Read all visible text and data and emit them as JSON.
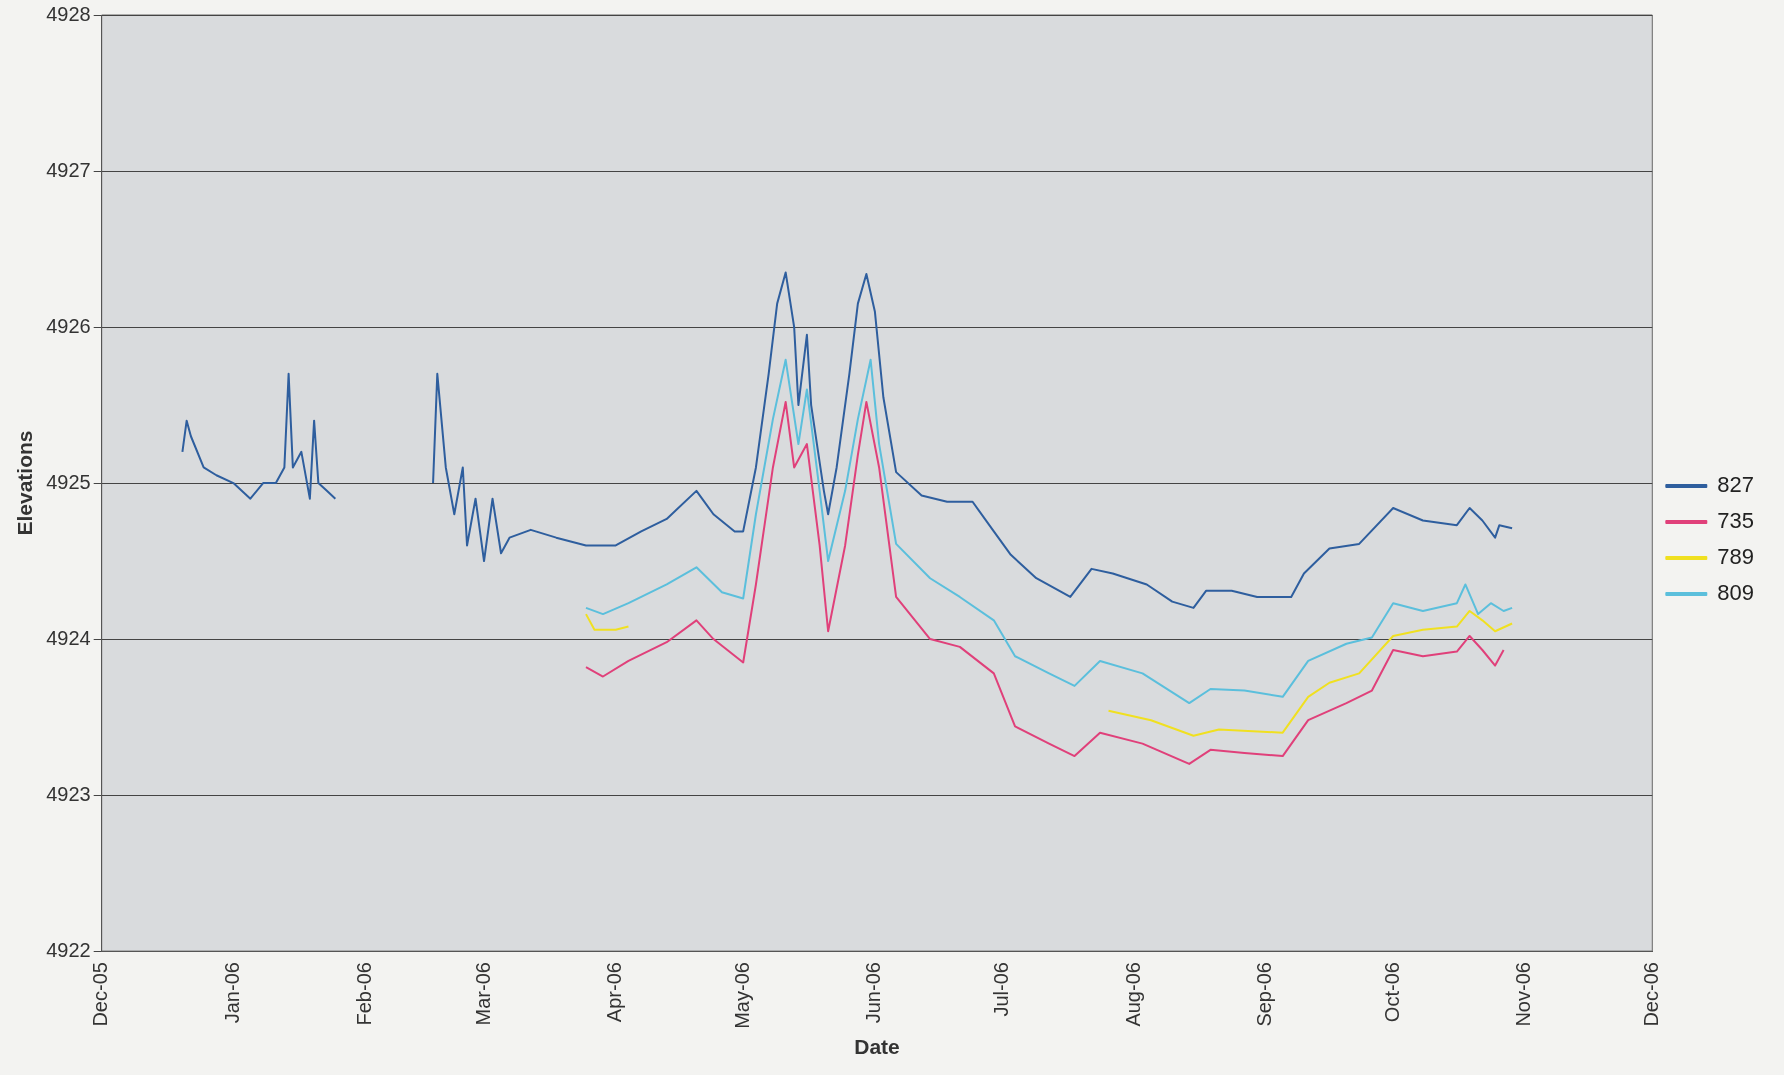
{
  "chart_data": {
    "type": "line",
    "xlabel": "Date",
    "ylabel": "Elevations",
    "ylim": [
      4922,
      4928
    ],
    "yticks": [
      4922,
      4923,
      4924,
      4925,
      4926,
      4927,
      4928
    ],
    "xlim": [
      "2005-12-01",
      "2006-12-01"
    ],
    "xticks": [
      {
        "value": "2005-12-01",
        "label": "Dec-05"
      },
      {
        "value": "2006-01-01",
        "label": "Jan-06"
      },
      {
        "value": "2006-02-01",
        "label": "Feb-06"
      },
      {
        "value": "2006-03-01",
        "label": "Mar-06"
      },
      {
        "value": "2006-04-01",
        "label": "Apr-06"
      },
      {
        "value": "2006-05-01",
        "label": "May-06"
      },
      {
        "value": "2006-06-01",
        "label": "Jun-06"
      },
      {
        "value": "2006-07-01",
        "label": "Jul-06"
      },
      {
        "value": "2006-08-01",
        "label": "Aug-06"
      },
      {
        "value": "2006-09-01",
        "label": "Sep-06"
      },
      {
        "value": "2006-10-01",
        "label": "Oct-06"
      },
      {
        "value": "2006-11-01",
        "label": "Nov-06"
      },
      {
        "value": "2006-12-01",
        "label": "Dec-06"
      }
    ],
    "grid": "y",
    "legend": "right",
    "marker": "none",
    "line_style": "solid",
    "series": [
      {
        "name": "827",
        "color": "#2e5e9e",
        "x": [
          "2005-12-20",
          "2005-12-21",
          "2005-12-22",
          "2005-12-25",
          "2005-12-28",
          "2006-01-01",
          "2006-01-05",
          "2006-01-08",
          "2006-01-11",
          "2006-01-13",
          "2006-01-14",
          "2006-01-15",
          "2006-01-17",
          "2006-01-19",
          "2006-01-20",
          "2006-01-21",
          "2006-01-23",
          "2006-01-25",
          "2006-02-05",
          "2006-02-17",
          "2006-02-18",
          "2006-02-20",
          "2006-02-22",
          "2006-02-24",
          "2006-02-25",
          "2006-02-27",
          "2006-03-01",
          "2006-03-03",
          "2006-03-05",
          "2006-03-07",
          "2006-03-12",
          "2006-03-18",
          "2006-03-25",
          "2006-04-01",
          "2006-04-07",
          "2006-04-13",
          "2006-04-20",
          "2006-04-24",
          "2006-04-29",
          "2006-05-01",
          "2006-05-04",
          "2006-05-07",
          "2006-05-09",
          "2006-05-11",
          "2006-05-13",
          "2006-05-14",
          "2006-05-16",
          "2006-05-17",
          "2006-05-20",
          "2006-05-21",
          "2006-05-23",
          "2006-05-26",
          "2006-05-28",
          "2006-05-30",
          "2006-06-01",
          "2006-06-03",
          "2006-06-06",
          "2006-06-12",
          "2006-06-18",
          "2006-06-24",
          "2006-06-29",
          "2006-07-03",
          "2006-07-09",
          "2006-07-17",
          "2006-07-22",
          "2006-07-27",
          "2006-08-04",
          "2006-08-10",
          "2006-08-15",
          "2006-08-18",
          "2006-08-24",
          "2006-08-30",
          "2006-09-07",
          "2006-09-10",
          "2006-09-16",
          "2006-09-23",
          "2006-10-01",
          "2006-10-08",
          "2006-10-16",
          "2006-10-19",
          "2006-10-22",
          "2006-10-25",
          "2006-10-26",
          "2006-10-29"
        ],
        "values": [
          4925.2,
          4925.4,
          4925.3,
          4925.1,
          4925.05,
          4925.0,
          4924.9,
          4925.0,
          4925.0,
          4925.1,
          4925.7,
          4925.1,
          4925.2,
          4924.9,
          4925.4,
          4925.0,
          4924.95,
          4924.9,
          null,
          4925.0,
          4925.7,
          4925.1,
          4924.8,
          4925.1,
          4924.6,
          4924.9,
          4924.5,
          4924.9,
          4924.55,
          4924.65,
          4924.7,
          4924.65,
          4924.6,
          4924.6,
          4924.69,
          4924.77,
          4924.95,
          4924.8,
          4924.69,
          4924.69,
          4925.1,
          4925.7,
          4926.15,
          4926.35,
          4926.0,
          4925.5,
          4925.95,
          4925.5,
          4924.95,
          4924.8,
          4925.1,
          4925.7,
          4926.15,
          4926.34,
          4926.1,
          4925.55,
          4925.07,
          4924.92,
          4924.88,
          4924.88,
          4924.69,
          4924.54,
          4924.39,
          4924.27,
          4924.45,
          4924.42,
          4924.35,
          4924.24,
          4924.2,
          4924.31,
          4924.31,
          4924.27,
          4924.27,
          4924.42,
          4924.58,
          4924.61,
          4924.84,
          4924.76,
          4924.73,
          4924.84,
          4924.76,
          4924.65,
          4924.73,
          4924.71
        ]
      },
      {
        "name": "735",
        "color": "#e0407a",
        "x": [
          "2006-03-25",
          "2006-03-29",
          "2006-04-04",
          "2006-04-13",
          "2006-04-20",
          "2006-04-24",
          "2006-05-01",
          "2006-05-04",
          "2006-05-08",
          "2006-05-11",
          "2006-05-13",
          "2006-05-16",
          "2006-05-19",
          "2006-05-21",
          "2006-05-25",
          "2006-05-28",
          "2006-05-30",
          "2006-06-02",
          "2006-06-06",
          "2006-06-14",
          "2006-06-21",
          "2006-06-29",
          "2006-07-04",
          "2006-07-12",
          "2006-07-18",
          "2006-07-24",
          "2006-08-03",
          "2006-08-14",
          "2006-08-19",
          "2006-08-27",
          "2006-09-05",
          "2006-09-11",
          "2006-09-20",
          "2006-09-26",
          "2006-10-01",
          "2006-10-08",
          "2006-10-16",
          "2006-10-19",
          "2006-10-22",
          "2006-10-25",
          "2006-10-27"
        ],
        "values": [
          4923.82,
          4923.76,
          4923.86,
          4923.98,
          4924.12,
          4924.0,
          4923.85,
          4924.35,
          4925.1,
          4925.52,
          4925.1,
          4925.25,
          4924.6,
          4924.05,
          4924.6,
          4925.18,
          4925.52,
          4925.1,
          4924.27,
          4924.0,
          4923.95,
          4923.78,
          4923.44,
          4923.33,
          4923.25,
          4923.4,
          4923.33,
          4923.2,
          4923.29,
          4923.27,
          4923.25,
          4923.48,
          4923.59,
          4923.67,
          4923.93,
          4923.89,
          4923.92,
          4924.02,
          4923.93,
          4923.83,
          4923.93
        ]
      },
      {
        "name": "789",
        "color": "#f0e020",
        "x": [
          "2006-03-25",
          "2006-03-27",
          "2006-04-01",
          "2006-04-04",
          "2006-05-30",
          "2006-07-26",
          "2006-08-05",
          "2006-08-15",
          "2006-08-21",
          "2006-09-05",
          "2006-09-11",
          "2006-09-16",
          "2006-09-23",
          "2006-10-01",
          "2006-10-08",
          "2006-10-16",
          "2006-10-19",
          "2006-10-22",
          "2006-10-25",
          "2006-10-29"
        ],
        "values": [
          4924.16,
          4924.06,
          4924.06,
          4924.08,
          null,
          4923.54,
          4923.48,
          4923.38,
          4923.42,
          4923.4,
          4923.63,
          4923.72,
          4923.78,
          4924.02,
          4924.06,
          4924.08,
          4924.18,
          4924.12,
          4924.05,
          4924.1
        ]
      },
      {
        "name": "809",
        "color": "#5bbfdc",
        "x": [
          "2006-03-25",
          "2006-03-29",
          "2006-04-04",
          "2006-04-13",
          "2006-04-20",
          "2006-04-26",
          "2006-05-01",
          "2006-05-04",
          "2006-05-08",
          "2006-05-11",
          "2006-05-14",
          "2006-05-16",
          "2006-05-19",
          "2006-05-21",
          "2006-05-25",
          "2006-05-28",
          "2006-05-31",
          "2006-06-02",
          "2006-06-06",
          "2006-06-14",
          "2006-06-21",
          "2006-06-29",
          "2006-07-04",
          "2006-07-12",
          "2006-07-18",
          "2006-07-24",
          "2006-08-03",
          "2006-08-14",
          "2006-08-19",
          "2006-08-27",
          "2006-09-05",
          "2006-09-11",
          "2006-09-20",
          "2006-09-26",
          "2006-10-01",
          "2006-10-08",
          "2006-10-16",
          "2006-10-18",
          "2006-10-21",
          "2006-10-24",
          "2006-10-27",
          "2006-10-29"
        ],
        "values": [
          4924.2,
          4924.16,
          4924.23,
          4924.35,
          4924.46,
          4924.3,
          4924.26,
          4924.8,
          4925.41,
          4925.79,
          4925.25,
          4925.6,
          4924.95,
          4924.5,
          4924.95,
          4925.41,
          4925.79,
          4925.25,
          4924.61,
          4924.39,
          4924.27,
          4924.12,
          4923.89,
          4923.78,
          4923.7,
          4923.86,
          4923.78,
          4923.59,
          4923.68,
          4923.67,
          4923.63,
          4923.86,
          4923.97,
          4924.01,
          4924.23,
          4924.18,
          4924.23,
          4924.35,
          4924.16,
          4924.23,
          4924.18,
          4924.2
        ]
      }
    ]
  }
}
